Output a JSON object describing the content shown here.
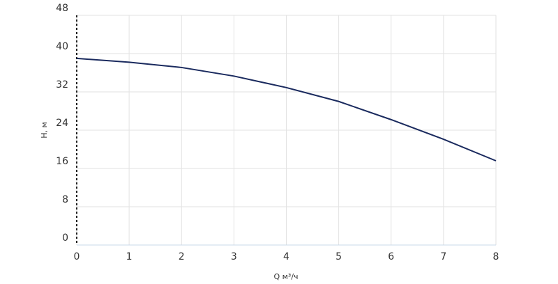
{
  "chart_data": {
    "type": "line",
    "x_label": "Q м³/ч",
    "y_label": "H, м",
    "x": [
      0,
      1,
      2,
      3,
      4,
      5,
      6,
      7,
      8
    ],
    "series": [
      {
        "name": "H",
        "color": "#1a2a5e",
        "values": [
          39.0,
          38.2,
          37.1,
          35.3,
          32.9,
          30.0,
          26.2,
          22.1,
          17.6
        ]
      }
    ],
    "xlim": [
      0,
      8
    ],
    "xticks": [
      0,
      1,
      2,
      3,
      4,
      5,
      6,
      7,
      8
    ],
    "ylim": [
      0,
      48
    ],
    "yticks": [
      0,
      8,
      16,
      24,
      32,
      40,
      48
    ],
    "grid": true
  }
}
